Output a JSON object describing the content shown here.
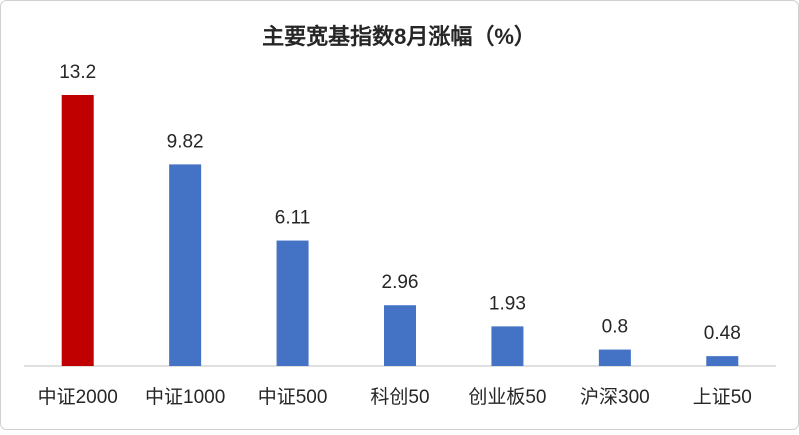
{
  "chart_data": {
    "type": "bar",
    "title": "主要宽基指数8月涨幅（%）",
    "categories": [
      "中证2000",
      "中证1000",
      "中证500",
      "科创50",
      "创业板50",
      "沪深300",
      "上证50"
    ],
    "values": [
      13.2,
      9.82,
      6.11,
      2.96,
      1.93,
      0.8,
      0.48
    ],
    "colors": [
      "#c00000",
      "#4472c4",
      "#4472c4",
      "#4472c4",
      "#4472c4",
      "#4472c4",
      "#4472c4"
    ]
  }
}
